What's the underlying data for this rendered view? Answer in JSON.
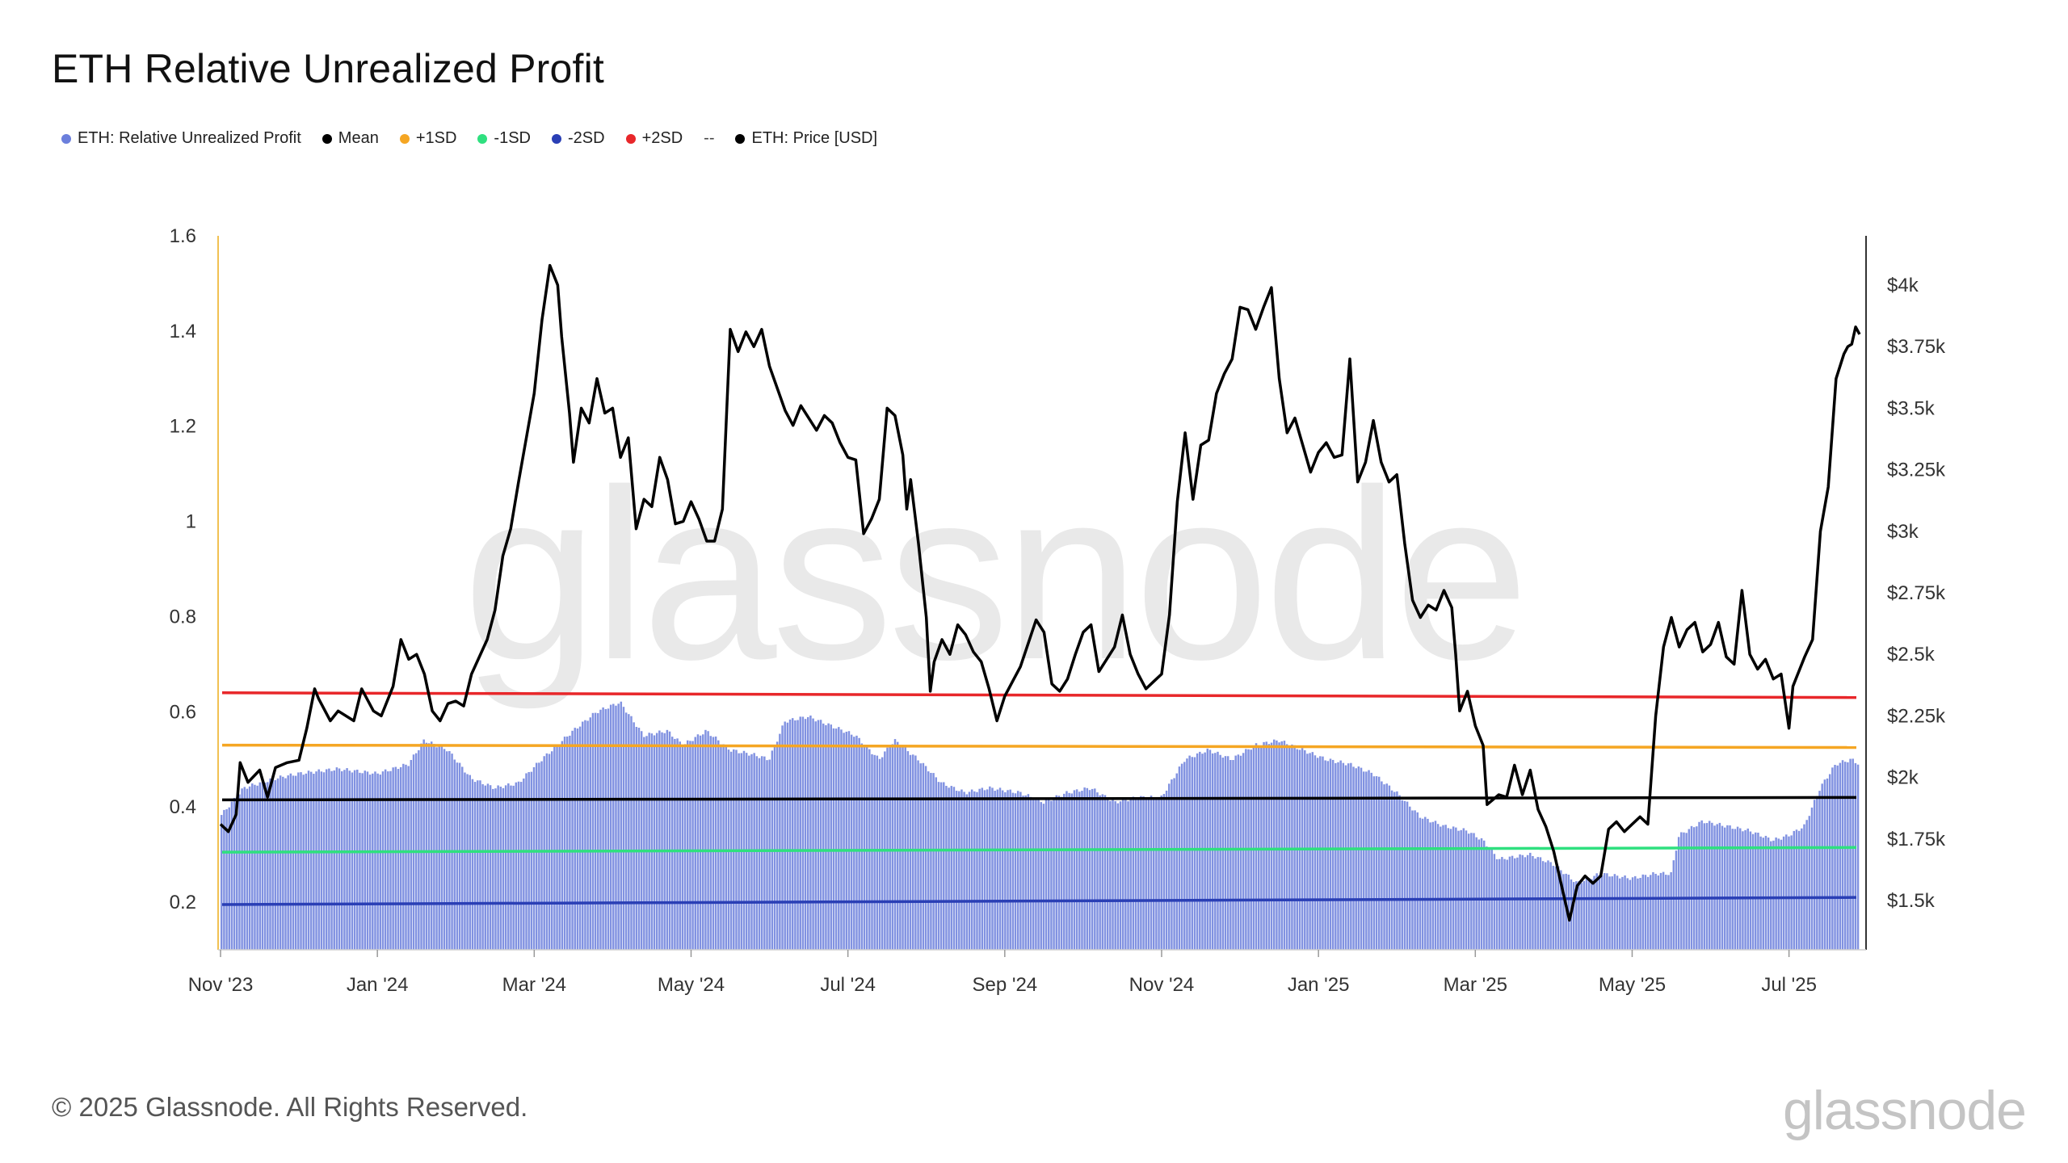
{
  "title": "ETH Relative Unrealized Profit",
  "legend": [
    {
      "label": "ETH: Relative Unrealized Profit",
      "color": "#6b7fdc"
    },
    {
      "label": "Mean",
      "color": "#000000"
    },
    {
      "label": "+1SD",
      "color": "#f5a623"
    },
    {
      "label": "-1SD",
      "color": "#2fe07f"
    },
    {
      "label": "-2SD",
      "color": "#2a3fb5"
    },
    {
      "label": "+2SD",
      "color": "#e8272a"
    },
    {
      "label": "ETH: Price [USD]",
      "color": "#000000"
    }
  ],
  "legend_separator": "--",
  "watermark": "glassnode",
  "footer": {
    "copyright": "© 2025 Glassnode. All Rights Reserved.",
    "logo": "glassnode"
  },
  "chart_data": {
    "type": "bar+line",
    "title": "ETH Relative Unrealized Profit",
    "x_ticks": [
      "Nov '23",
      "Jan '24",
      "Mar '24",
      "May '24",
      "Jul '24",
      "Sep '24",
      "Nov '24",
      "Jan '25",
      "Mar '25",
      "May '25",
      "Jul '25"
    ],
    "x_tick_months": [
      0,
      2,
      4,
      6,
      8,
      10,
      12,
      14,
      16,
      18,
      20
    ],
    "x_range_months": [
      0,
      20.9
    ],
    "left_axis": {
      "ticks": [
        "0.2",
        "0.4",
        "0.6",
        "0.8",
        "1",
        "1.2",
        "1.4",
        "1.6"
      ],
      "values": [
        0.2,
        0.4,
        0.6,
        0.8,
        1.0,
        1.2,
        1.4,
        1.6
      ],
      "ylim": [
        0.1,
        1.6
      ]
    },
    "right_axis": {
      "ticks": [
        "$1.5k",
        "$1.75k",
        "$2k",
        "$2.25k",
        "$2.5k",
        "$2.75k",
        "$3k",
        "$3.25k",
        "$3.5k",
        "$3.75k",
        "$4k"
      ],
      "values": [
        1500,
        1750,
        2000,
        2250,
        2500,
        2750,
        3000,
        3250,
        3500,
        3750,
        4000
      ],
      "ylim": [
        1300,
        4200
      ]
    },
    "bands": [
      {
        "name": "+2SD",
        "color": "#e8272a",
        "start": 0.64,
        "end": 0.63
      },
      {
        "name": "+1SD",
        "color": "#f5a623",
        "start": 0.53,
        "end": 0.525
      },
      {
        "name": "Mean",
        "color": "#000000",
        "start": 0.415,
        "end": 0.42
      },
      {
        "name": "-1SD",
        "color": "#2fe07f",
        "start": 0.305,
        "end": 0.315
      },
      {
        "name": "-2SD",
        "color": "#2a3fb5",
        "start": 0.195,
        "end": 0.21
      }
    ],
    "rup_series": {
      "name": "ETH: Relative Unrealized Profit",
      "color": "#6b7fdc",
      "points": [
        [
          0,
          0.38
        ],
        [
          0.3,
          0.44
        ],
        [
          0.7,
          0.46
        ],
        [
          1,
          0.47
        ],
        [
          1.5,
          0.48
        ],
        [
          2,
          0.47
        ],
        [
          2.4,
          0.49
        ],
        [
          2.6,
          0.54
        ],
        [
          2.9,
          0.52
        ],
        [
          3.2,
          0.46
        ],
        [
          3.5,
          0.44
        ],
        [
          3.8,
          0.45
        ],
        [
          4.1,
          0.5
        ],
        [
          4.5,
          0.56
        ],
        [
          4.8,
          0.6
        ],
        [
          5.1,
          0.62
        ],
        [
          5.4,
          0.55
        ],
        [
          5.7,
          0.56
        ],
        [
          5.9,
          0.53
        ],
        [
          6.2,
          0.56
        ],
        [
          6.5,
          0.52
        ],
        [
          6.8,
          0.51
        ],
        [
          7,
          0.5
        ],
        [
          7.2,
          0.58
        ],
        [
          7.5,
          0.59
        ],
        [
          7.8,
          0.57
        ],
        [
          8.1,
          0.55
        ],
        [
          8.4,
          0.5
        ],
        [
          8.6,
          0.54
        ],
        [
          8.9,
          0.5
        ],
        [
          9.2,
          0.45
        ],
        [
          9.5,
          0.43
        ],
        [
          9.8,
          0.44
        ],
        [
          10.2,
          0.43
        ],
        [
          10.5,
          0.41
        ],
        [
          10.8,
          0.43
        ],
        [
          11.1,
          0.44
        ],
        [
          11.4,
          0.41
        ],
        [
          11.7,
          0.42
        ],
        [
          12,
          0.42
        ],
        [
          12.3,
          0.5
        ],
        [
          12.6,
          0.52
        ],
        [
          12.9,
          0.5
        ],
        [
          13.2,
          0.53
        ],
        [
          13.5,
          0.54
        ],
        [
          13.8,
          0.52
        ],
        [
          14.1,
          0.5
        ],
        [
          14.4,
          0.49
        ],
        [
          14.7,
          0.47
        ],
        [
          15,
          0.43
        ],
        [
          15.3,
          0.38
        ],
        [
          15.6,
          0.36
        ],
        [
          15.9,
          0.35
        ],
        [
          16.1,
          0.33
        ],
        [
          16.3,
          0.29
        ],
        [
          16.7,
          0.3
        ],
        [
          17,
          0.28
        ],
        [
          17.3,
          0.24
        ],
        [
          17.6,
          0.26
        ],
        [
          18,
          0.25
        ],
        [
          18.3,
          0.26
        ],
        [
          18.5,
          0.26
        ],
        [
          18.6,
          0.34
        ],
        [
          18.9,
          0.37
        ],
        [
          19.2,
          0.36
        ],
        [
          19.5,
          0.35
        ],
        [
          19.8,
          0.33
        ],
        [
          20,
          0.34
        ],
        [
          20.2,
          0.36
        ],
        [
          20.4,
          0.44
        ],
        [
          20.6,
          0.49
        ],
        [
          20.8,
          0.5
        ],
        [
          20.9,
          0.49
        ]
      ]
    },
    "price_series": {
      "name": "ETH: Price [USD]",
      "color": "#000000",
      "points": [
        [
          0,
          1810
        ],
        [
          0.1,
          1780
        ],
        [
          0.2,
          1850
        ],
        [
          0.25,
          2060
        ],
        [
          0.35,
          1980
        ],
        [
          0.5,
          2030
        ],
        [
          0.6,
          1920
        ],
        [
          0.7,
          2040
        ],
        [
          0.85,
          2060
        ],
        [
          1,
          2070
        ],
        [
          1.1,
          2200
        ],
        [
          1.2,
          2360
        ],
        [
          1.25,
          2320
        ],
        [
          1.4,
          2230
        ],
        [
          1.5,
          2270
        ],
        [
          1.7,
          2230
        ],
        [
          1.8,
          2360
        ],
        [
          1.95,
          2270
        ],
        [
          2.05,
          2250
        ],
        [
          2.2,
          2370
        ],
        [
          2.3,
          2560
        ],
        [
          2.4,
          2480
        ],
        [
          2.5,
          2500
        ],
        [
          2.6,
          2420
        ],
        [
          2.7,
          2270
        ],
        [
          2.8,
          2230
        ],
        [
          2.9,
          2300
        ],
        [
          3,
          2310
        ],
        [
          3.1,
          2290
        ],
        [
          3.2,
          2420
        ],
        [
          3.4,
          2560
        ],
        [
          3.5,
          2680
        ],
        [
          3.6,
          2900
        ],
        [
          3.7,
          3010
        ],
        [
          3.8,
          3200
        ],
        [
          3.9,
          3380
        ],
        [
          4,
          3560
        ],
        [
          4.1,
          3860
        ],
        [
          4.2,
          4080
        ],
        [
          4.3,
          4000
        ],
        [
          4.35,
          3790
        ],
        [
          4.45,
          3480
        ],
        [
          4.5,
          3280
        ],
        [
          4.6,
          3500
        ],
        [
          4.7,
          3440
        ],
        [
          4.8,
          3620
        ],
        [
          4.9,
          3480
        ],
        [
          5,
          3500
        ],
        [
          5.1,
          3300
        ],
        [
          5.2,
          3380
        ],
        [
          5.3,
          3010
        ],
        [
          5.4,
          3130
        ],
        [
          5.5,
          3100
        ],
        [
          5.6,
          3300
        ],
        [
          5.7,
          3210
        ],
        [
          5.8,
          3030
        ],
        [
          5.9,
          3040
        ],
        [
          6,
          3120
        ],
        [
          6.1,
          3050
        ],
        [
          6.2,
          2960
        ],
        [
          6.3,
          2960
        ],
        [
          6.4,
          3090
        ],
        [
          6.5,
          3820
        ],
        [
          6.6,
          3730
        ],
        [
          6.7,
          3810
        ],
        [
          6.8,
          3750
        ],
        [
          6.9,
          3820
        ],
        [
          7,
          3670
        ],
        [
          7.1,
          3580
        ],
        [
          7.2,
          3490
        ],
        [
          7.3,
          3430
        ],
        [
          7.4,
          3510
        ],
        [
          7.5,
          3460
        ],
        [
          7.6,
          3410
        ],
        [
          7.7,
          3470
        ],
        [
          7.8,
          3440
        ],
        [
          7.9,
          3360
        ],
        [
          8,
          3300
        ],
        [
          8.1,
          3290
        ],
        [
          8.2,
          2990
        ],
        [
          8.3,
          3050
        ],
        [
          8.4,
          3130
        ],
        [
          8.5,
          3500
        ],
        [
          8.6,
          3470
        ],
        [
          8.7,
          3310
        ],
        [
          8.75,
          3090
        ],
        [
          8.8,
          3210
        ],
        [
          8.9,
          2950
        ],
        [
          9,
          2650
        ],
        [
          9.05,
          2350
        ],
        [
          9.1,
          2470
        ],
        [
          9.2,
          2560
        ],
        [
          9.3,
          2500
        ],
        [
          9.4,
          2620
        ],
        [
          9.5,
          2580
        ],
        [
          9.6,
          2510
        ],
        [
          9.7,
          2470
        ],
        [
          9.8,
          2360
        ],
        [
          9.9,
          2230
        ],
        [
          10,
          2330
        ],
        [
          10.1,
          2390
        ],
        [
          10.2,
          2450
        ],
        [
          10.4,
          2640
        ],
        [
          10.5,
          2590
        ],
        [
          10.6,
          2380
        ],
        [
          10.7,
          2350
        ],
        [
          10.8,
          2400
        ],
        [
          10.9,
          2500
        ],
        [
          11,
          2590
        ],
        [
          11.1,
          2620
        ],
        [
          11.2,
          2430
        ],
        [
          11.3,
          2480
        ],
        [
          11.4,
          2530
        ],
        [
          11.5,
          2660
        ],
        [
          11.6,
          2500
        ],
        [
          11.7,
          2420
        ],
        [
          11.8,
          2360
        ],
        [
          11.9,
          2390
        ],
        [
          12,
          2420
        ],
        [
          12.1,
          2660
        ],
        [
          12.2,
          3120
        ],
        [
          12.3,
          3400
        ],
        [
          12.4,
          3130
        ],
        [
          12.5,
          3350
        ],
        [
          12.6,
          3370
        ],
        [
          12.7,
          3560
        ],
        [
          12.8,
          3640
        ],
        [
          12.9,
          3700
        ],
        [
          13,
          3910
        ],
        [
          13.1,
          3900
        ],
        [
          13.2,
          3820
        ],
        [
          13.3,
          3910
        ],
        [
          13.4,
          3990
        ],
        [
          13.5,
          3620
        ],
        [
          13.6,
          3400
        ],
        [
          13.7,
          3460
        ],
        [
          13.8,
          3350
        ],
        [
          13.9,
          3240
        ],
        [
          14,
          3320
        ],
        [
          14.1,
          3360
        ],
        [
          14.2,
          3300
        ],
        [
          14.3,
          3310
        ],
        [
          14.4,
          3700
        ],
        [
          14.5,
          3200
        ],
        [
          14.6,
          3280
        ],
        [
          14.7,
          3450
        ],
        [
          14.8,
          3280
        ],
        [
          14.9,
          3200
        ],
        [
          15,
          3230
        ],
        [
          15.1,
          2950
        ],
        [
          15.2,
          2720
        ],
        [
          15.3,
          2650
        ],
        [
          15.4,
          2700
        ],
        [
          15.5,
          2680
        ],
        [
          15.6,
          2760
        ],
        [
          15.7,
          2690
        ],
        [
          15.75,
          2500
        ],
        [
          15.8,
          2270
        ],
        [
          15.9,
          2350
        ],
        [
          16,
          2210
        ],
        [
          16.1,
          2130
        ],
        [
          16.15,
          1890
        ],
        [
          16.3,
          1930
        ],
        [
          16.4,
          1920
        ],
        [
          16.5,
          2050
        ],
        [
          16.6,
          1930
        ],
        [
          16.7,
          2030
        ],
        [
          16.8,
          1870
        ],
        [
          16.9,
          1800
        ],
        [
          17,
          1700
        ],
        [
          17.1,
          1560
        ],
        [
          17.2,
          1420
        ],
        [
          17.3,
          1560
        ],
        [
          17.4,
          1600
        ],
        [
          17.5,
          1570
        ],
        [
          17.6,
          1600
        ],
        [
          17.7,
          1790
        ],
        [
          17.8,
          1820
        ],
        [
          17.9,
          1780
        ],
        [
          18,
          1810
        ],
        [
          18.1,
          1840
        ],
        [
          18.2,
          1810
        ],
        [
          18.3,
          2250
        ],
        [
          18.4,
          2530
        ],
        [
          18.5,
          2650
        ],
        [
          18.6,
          2530
        ],
        [
          18.7,
          2600
        ],
        [
          18.8,
          2630
        ],
        [
          18.9,
          2510
        ],
        [
          19,
          2540
        ],
        [
          19.1,
          2630
        ],
        [
          19.2,
          2490
        ],
        [
          19.3,
          2460
        ],
        [
          19.4,
          2760
        ],
        [
          19.5,
          2500
        ],
        [
          19.6,
          2440
        ],
        [
          19.7,
          2480
        ],
        [
          19.8,
          2400
        ],
        [
          19.9,
          2420
        ],
        [
          20,
          2200
        ],
        [
          20.05,
          2370
        ],
        [
          20.1,
          2410
        ],
        [
          20.2,
          2490
        ],
        [
          20.3,
          2560
        ],
        [
          20.4,
          3000
        ],
        [
          20.5,
          3180
        ],
        [
          20.6,
          3620
        ],
        [
          20.7,
          3720
        ],
        [
          20.75,
          3750
        ],
        [
          20.8,
          3760
        ],
        [
          20.85,
          3830
        ],
        [
          20.9,
          3800
        ]
      ]
    }
  }
}
